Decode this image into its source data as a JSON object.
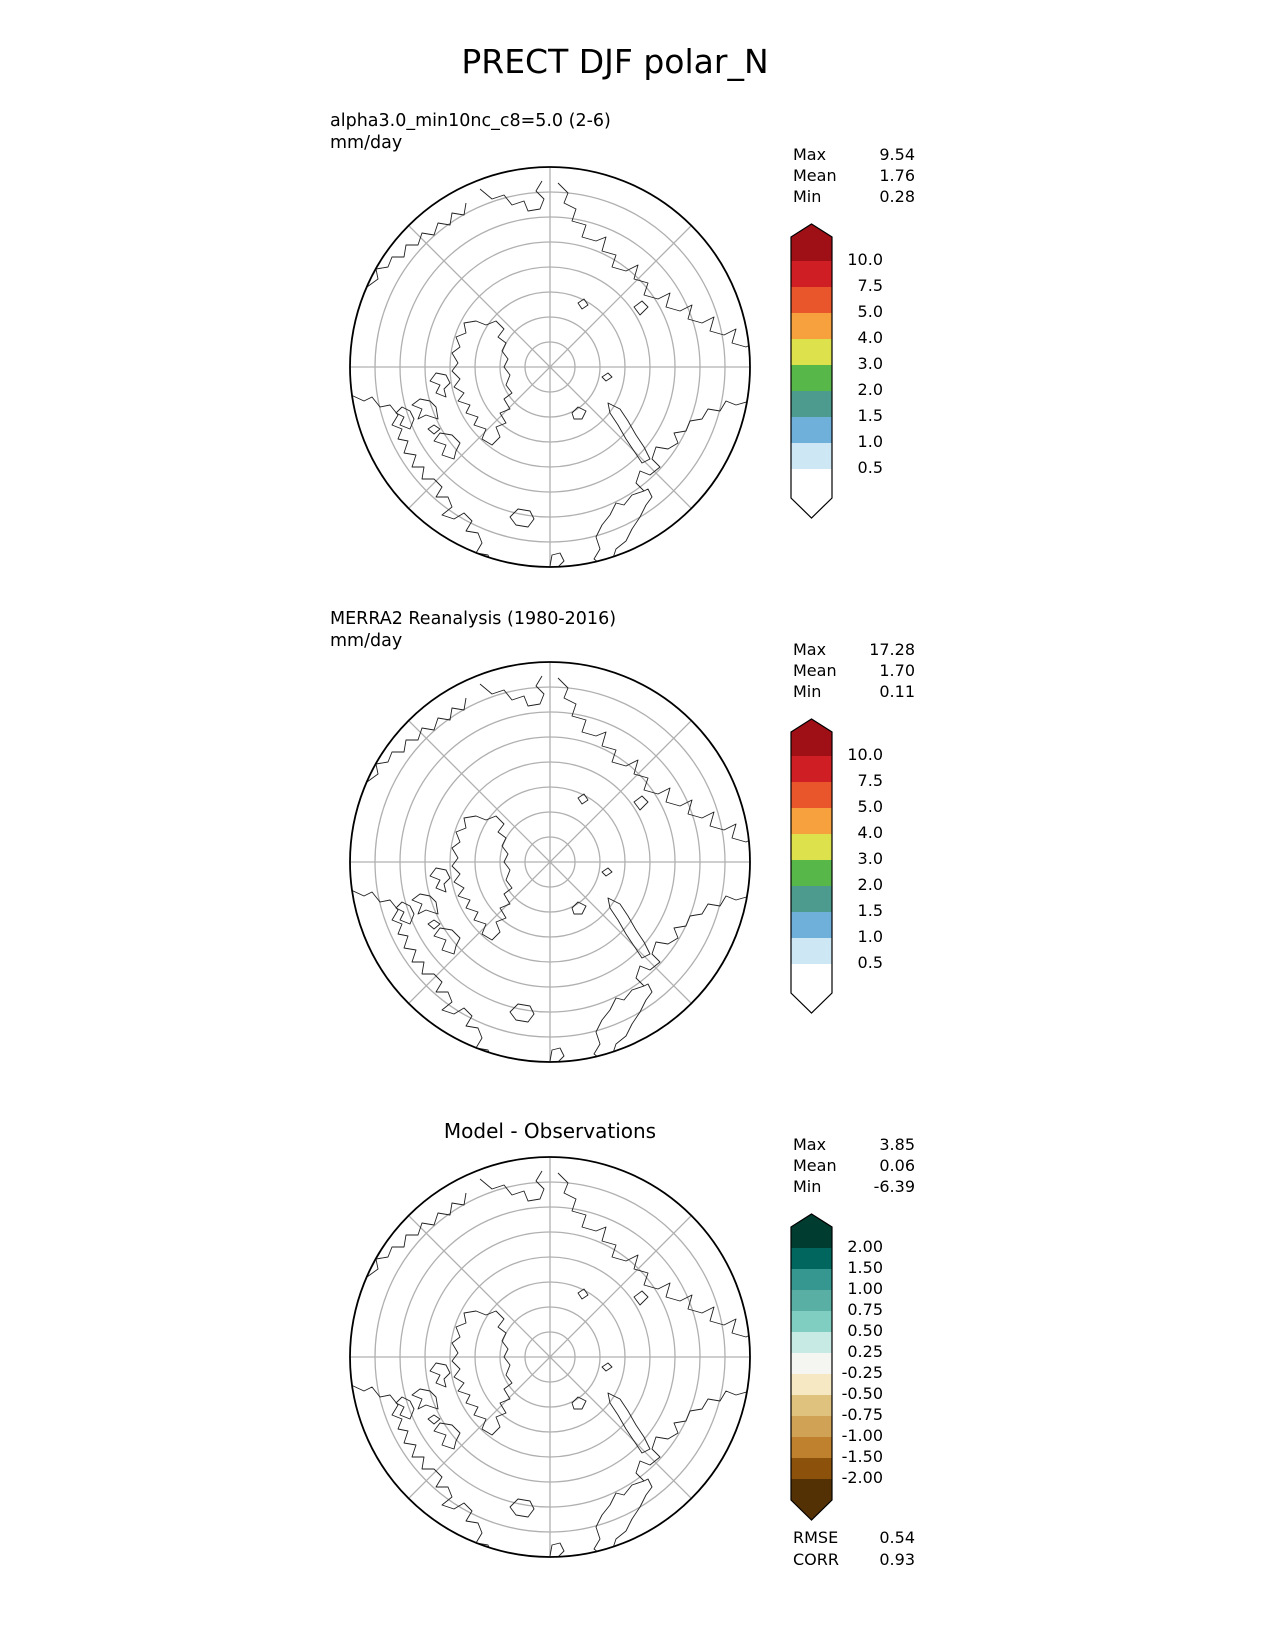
{
  "title": "PRECT DJF polar_N",
  "colors": {
    "background": "#ffffff",
    "graticule": "#b0b0b0",
    "coastline": "#1f1f1f",
    "map_boundary": "#000000",
    "text": "#000000"
  },
  "chart_data": [
    {
      "type": "heatmap",
      "projection": "north_polar",
      "panel_title": "alpha3.0_min10nc_c8=5.0 (2-6)",
      "units": "mm/day",
      "stats": {
        "max_label": "Max",
        "max_value": "9.54",
        "mean_label": "Mean",
        "mean_value": "1.76",
        "min_label": "Min",
        "min_value": "0.28"
      },
      "colorbar": {
        "orientation": "vertical",
        "extend": "both",
        "tick_labels": [
          "10.0",
          "7.5",
          "5.0",
          "4.0",
          "3.0",
          "2.0",
          "1.5",
          "1.0",
          "0.5"
        ],
        "colors_top_to_bottom": [
          "#9e1016",
          "#d01e25",
          "#e9562c",
          "#f7a13e",
          "#dce14c",
          "#58b749",
          "#4d9b8f",
          "#6fb0db",
          "#cde8f4",
          "#ffffff"
        ]
      }
    },
    {
      "type": "heatmap",
      "projection": "north_polar",
      "panel_title": "MERRA2 Reanalysis (1980-2016)",
      "units": "mm/day",
      "stats": {
        "max_label": "Max",
        "max_value": "17.28",
        "mean_label": "Mean",
        "mean_value": "1.70",
        "min_label": "Min",
        "min_value": "0.11"
      },
      "colorbar": {
        "orientation": "vertical",
        "extend": "both",
        "tick_labels": [
          "10.0",
          "7.5",
          "5.0",
          "4.0",
          "3.0",
          "2.0",
          "1.5",
          "1.0",
          "0.5"
        ],
        "colors_top_to_bottom": [
          "#9e1016",
          "#d01e25",
          "#e9562c",
          "#f7a13e",
          "#dce14c",
          "#58b749",
          "#4d9b8f",
          "#6fb0db",
          "#cde8f4",
          "#ffffff"
        ]
      }
    },
    {
      "type": "heatmap",
      "projection": "north_polar",
      "panel_title": "Model - Observations",
      "units": "",
      "stats": {
        "max_label": "Max",
        "max_value": "3.85",
        "mean_label": "Mean",
        "mean_value": "0.06",
        "min_label": "Min",
        "min_value": "-6.39"
      },
      "colorbar": {
        "orientation": "vertical",
        "extend": "both",
        "tick_labels": [
          "2.00",
          "1.50",
          "1.00",
          "0.75",
          "0.50",
          "0.25",
          "-0.25",
          "-0.50",
          "-0.75",
          "-1.00",
          "-1.50",
          "-2.00"
        ],
        "colors_top_to_bottom": [
          "#003c30",
          "#01665e",
          "#35978f",
          "#5aafa4",
          "#80cdc1",
          "#c7eae5",
          "#f5f5f1",
          "#f6e8c3",
          "#dfc27d",
          "#cfa255",
          "#bf812d",
          "#8c510a",
          "#543005"
        ]
      },
      "metrics": {
        "rmse_label": "RMSE",
        "rmse_value": "0.54",
        "corr_label": "CORR",
        "corr_value": "0.93"
      }
    }
  ]
}
